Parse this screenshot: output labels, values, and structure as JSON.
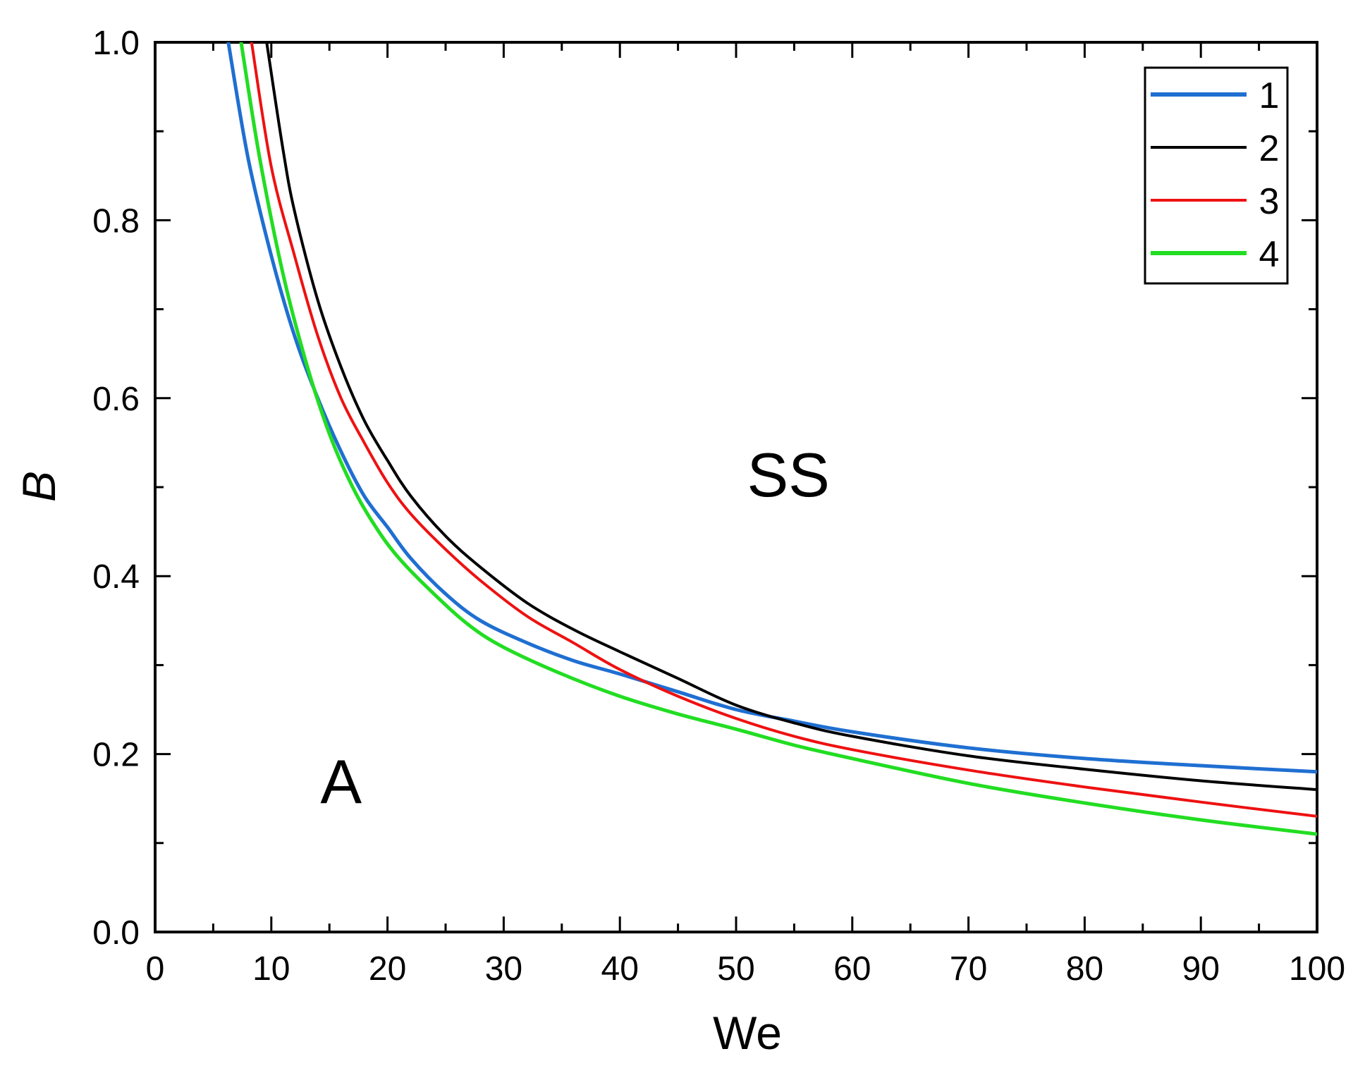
{
  "chart_data": {
    "type": "line",
    "title": "",
    "xlabel": "We",
    "ylabel": "B",
    "xlim": [
      0,
      100
    ],
    "ylim": [
      0,
      1.0
    ],
    "x_ticks": [
      "0",
      "10",
      "20",
      "30",
      "40",
      "50",
      "60",
      "70",
      "80",
      "90",
      "100"
    ],
    "y_ticks": [
      "0.0",
      "0.2",
      "0.4",
      "0.6",
      "0.8",
      "1.0"
    ],
    "grid": false,
    "legend_position": "top-right",
    "series": [
      {
        "name": "1",
        "color": "#1f6fd1",
        "x": [
          6.3,
          8,
          10,
          12,
          14,
          16,
          18,
          20,
          22,
          25,
          28,
          32,
          36,
          40,
          45,
          50,
          55,
          60,
          70,
          80,
          90,
          100
        ],
        "y": [
          1.0,
          0.87,
          0.76,
          0.67,
          0.6,
          0.54,
          0.49,
          0.455,
          0.42,
          0.38,
          0.35,
          0.325,
          0.305,
          0.29,
          0.27,
          0.25,
          0.237,
          0.225,
          0.207,
          0.195,
          0.187,
          0.18
        ]
      },
      {
        "name": "2",
        "color": "#000000",
        "x": [
          9.6,
          11,
          12,
          14,
          16,
          18,
          20,
          22,
          25,
          28,
          32,
          36,
          40,
          45,
          50,
          55,
          60,
          70,
          80,
          90,
          100
        ],
        "y": [
          1.0,
          0.88,
          0.81,
          0.71,
          0.635,
          0.575,
          0.53,
          0.49,
          0.445,
          0.41,
          0.37,
          0.34,
          0.315,
          0.285,
          0.255,
          0.235,
          0.22,
          0.198,
          0.183,
          0.17,
          0.16
        ]
      },
      {
        "name": "3",
        "color": "#ee1111",
        "x": [
          8.3,
          10,
          12,
          14,
          16,
          18,
          20,
          22,
          25,
          28,
          32,
          36,
          40,
          45,
          50,
          55,
          60,
          70,
          80,
          90,
          100
        ],
        "y": [
          1.0,
          0.86,
          0.76,
          0.67,
          0.6,
          0.55,
          0.505,
          0.47,
          0.43,
          0.395,
          0.355,
          0.325,
          0.295,
          0.265,
          0.24,
          0.22,
          0.205,
          0.182,
          0.163,
          0.146,
          0.13
        ]
      },
      {
        "name": "4",
        "color": "#22dd22",
        "x": [
          7.4,
          9,
          11,
          13,
          15,
          17,
          19,
          21,
          24,
          27,
          30,
          35,
          40,
          45,
          50,
          55,
          60,
          70,
          80,
          90,
          100
        ],
        "y": [
          1.0,
          0.87,
          0.74,
          0.64,
          0.56,
          0.5,
          0.455,
          0.42,
          0.38,
          0.345,
          0.32,
          0.29,
          0.265,
          0.245,
          0.228,
          0.21,
          0.195,
          0.167,
          0.145,
          0.126,
          0.11
        ]
      }
    ],
    "annotations": [
      {
        "text": "SS",
        "x": 54.5,
        "y": 0.515
      },
      {
        "text": "A",
        "x": 16.0,
        "y": 0.17
      }
    ]
  }
}
